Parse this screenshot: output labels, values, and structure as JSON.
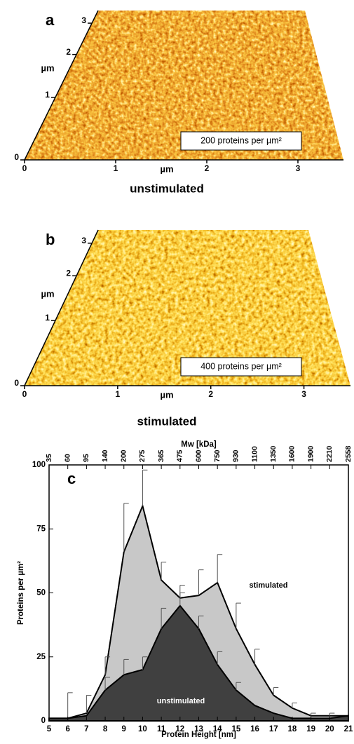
{
  "panels": [
    {
      "letter": "a",
      "x_label": "µm",
      "y_label": "µm",
      "xlim": [
        0,
        3.5
      ],
      "ylim": [
        0,
        3.5
      ],
      "xticks": [
        0,
        1,
        2,
        3
      ],
      "yticks": [
        0,
        1,
        2,
        3
      ],
      "annotation": "200 proteins per µm²",
      "caption": "unstimulated"
    },
    {
      "letter": "b",
      "x_label": "µm",
      "y_label": "µm",
      "xlim": [
        0,
        3.5
      ],
      "ylim": [
        0,
        3.5
      ],
      "xticks": [
        0,
        1,
        2,
        3
      ],
      "yticks": [
        0,
        1,
        2,
        3
      ],
      "annotation": "400 proteins per µm²",
      "caption": "stimulated"
    }
  ],
  "chart_data": {
    "type": "area",
    "panel_label": "c",
    "x_label": "Protein Height [nm]",
    "y_label": "Proteins per µm²",
    "x2_label": "Mw [kDa]",
    "x": [
      5,
      6,
      7,
      8,
      9,
      10,
      11,
      12,
      13,
      14,
      15,
      16,
      17,
      18,
      19,
      20,
      21
    ],
    "xlim": [
      5,
      21
    ],
    "xticks": [
      5,
      6,
      7,
      8,
      9,
      10,
      11,
      12,
      13,
      14,
      15,
      16,
      17,
      18,
      19,
      20,
      21
    ],
    "x2ticks": [
      {
        "value": 5,
        "label": "35"
      },
      {
        "value": 6,
        "label": "60"
      },
      {
        "value": 7,
        "label": "95"
      },
      {
        "value": 8,
        "label": "140"
      },
      {
        "value": 9,
        "label": "200"
      },
      {
        "value": 10,
        "label": "275"
      },
      {
        "value": 11,
        "label": "365"
      },
      {
        "value": 12,
        "label": "475"
      },
      {
        "value": 13,
        "label": "600"
      },
      {
        "value": 14,
        "label": "750"
      },
      {
        "value": 15,
        "label": "930"
      },
      {
        "value": 16,
        "label": "1100"
      },
      {
        "value": 17,
        "label": "1350"
      },
      {
        "value": 18,
        "label": "1600"
      },
      {
        "value": 19,
        "label": "1900"
      },
      {
        "value": 20,
        "label": "2210"
      },
      {
        "value": 21,
        "label": "2558"
      }
    ],
    "ylim": [
      0,
      100
    ],
    "yticks": [
      0,
      25,
      50,
      75,
      100
    ],
    "series": [
      {
        "name": "stimulated",
        "color": "#c8c8c8",
        "values": [
          1,
          1,
          3,
          18,
          66,
          84,
          55,
          48,
          49,
          54,
          36,
          22,
          10,
          5,
          2,
          2,
          2
        ],
        "errors": [
          null,
          10,
          7,
          7,
          19,
          14,
          7,
          5,
          10,
          11,
          10,
          6,
          3,
          2,
          1,
          1,
          null
        ]
      },
      {
        "name": "unstimulated",
        "color": "#404040",
        "values": [
          1,
          1,
          2,
          12,
          18,
          20,
          36,
          45,
          36,
          22,
          12,
          6,
          3,
          1,
          1,
          1,
          2
        ],
        "errors": [
          null,
          null,
          null,
          5,
          6,
          5,
          8,
          5,
          5,
          5,
          3,
          null,
          null,
          null,
          null,
          null,
          null
        ]
      }
    ]
  }
}
